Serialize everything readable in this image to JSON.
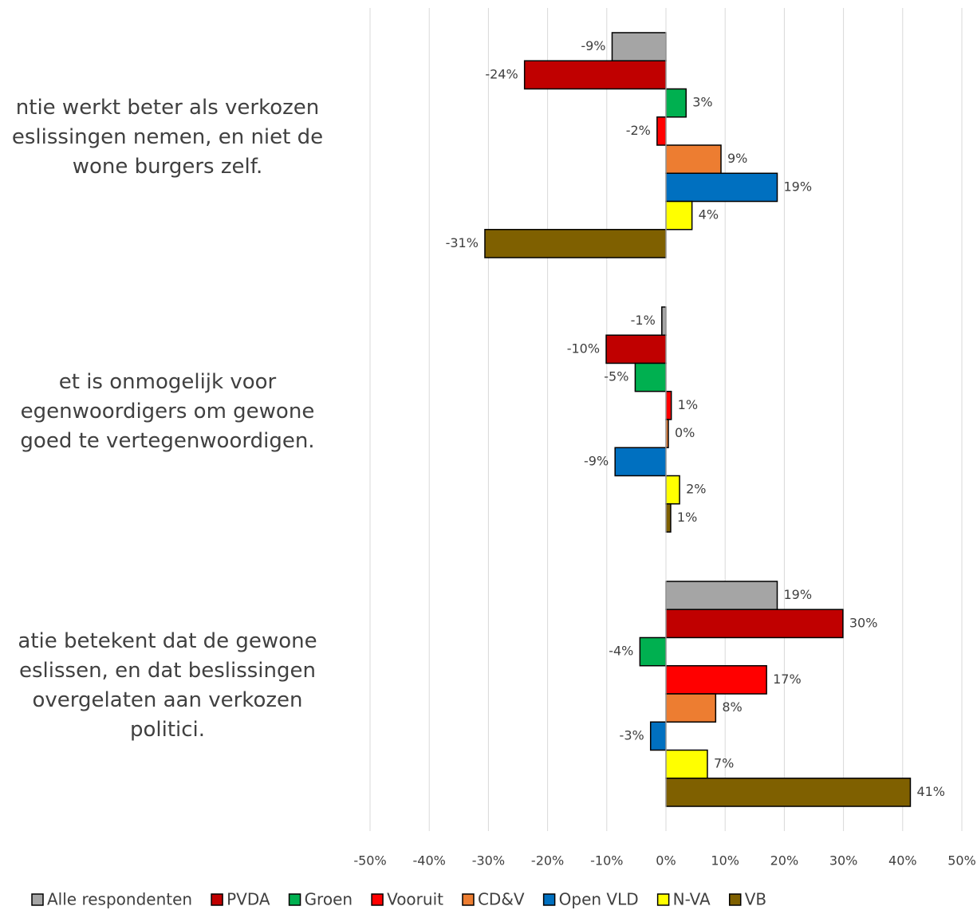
{
  "chart_data": {
    "type": "barh",
    "categories": [
      "ntie werkt beter als verkozen\neslissingen nemen, en niet de\nwone burgers zelf.",
      "et is onmogelijk voor\negenwoordigers om gewone\ngoed te vertegenwoordigen.",
      "atie betekent dat de gewone\neslissen, en dat beslissingen\novergelaten aan verkozen\npolitici."
    ],
    "series": [
      {
        "name": "Alle respondenten",
        "color": "#a5a5a5",
        "values": [
          -9.1,
          -0.7,
          18.8
        ],
        "value_labels": [
          "-9%",
          "-1%",
          "19%"
        ]
      },
      {
        "name": "PVDA",
        "color": "#c00000",
        "values": [
          -23.9,
          -10.1,
          29.9
        ],
        "value_labels": [
          "-24%",
          "-10%",
          "30%"
        ]
      },
      {
        "name": "Groen",
        "color": "#00b050",
        "values": [
          3.4,
          -5.2,
          -4.4
        ],
        "value_labels": [
          "3%",
          "-5%",
          "-4%"
        ]
      },
      {
        "name": "Vooruit",
        "color": "#ff0000",
        "values": [
          -1.5,
          0.9,
          17.0
        ],
        "value_labels": [
          "-2%",
          "1%",
          "17%"
        ]
      },
      {
        "name": "CD&V",
        "color": "#ed7d31",
        "values": [
          9.3,
          0.4,
          8.4
        ],
        "value_labels": [
          "9%",
          "0%",
          "8%"
        ]
      },
      {
        "name": "Open VLD",
        "color": "#0070c0",
        "values": [
          18.8,
          -8.6,
          -2.6
        ],
        "value_labels": [
          "19%",
          "-9%",
          "-3%"
        ]
      },
      {
        "name": "N-VA",
        "color": "#ffff00",
        "values": [
          4.4,
          2.3,
          7.0
        ],
        "value_labels": [
          "4%",
          "2%",
          "7%"
        ]
      },
      {
        "name": "VB",
        "color": "#7f6000",
        "values": [
          -30.6,
          0.8,
          41.3
        ],
        "value_labels": [
          "-31%",
          "1%",
          "41%"
        ]
      }
    ],
    "xlim": [
      -50,
      50
    ],
    "xticks": [
      {
        "value": -50,
        "label": "-50%"
      },
      {
        "value": -40,
        "label": "-40%"
      },
      {
        "value": -30,
        "label": "-30%"
      },
      {
        "value": -20,
        "label": "-20%"
      },
      {
        "value": -10,
        "label": "-10%"
      },
      {
        "value": 0,
        "label": "0%"
      },
      {
        "value": 10,
        "label": "10%"
      },
      {
        "value": 20,
        "label": "20%"
      },
      {
        "value": 30,
        "label": "30%"
      },
      {
        "value": 40,
        "label": "40%"
      },
      {
        "value": 50,
        "label": "50%"
      }
    ],
    "grid": true,
    "legend": "bottom"
  }
}
